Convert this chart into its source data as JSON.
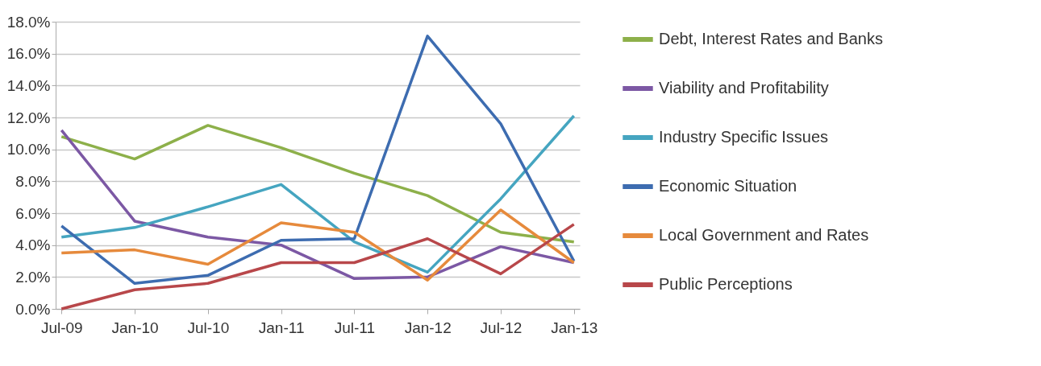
{
  "chart_data": {
    "type": "line",
    "categories": [
      "Jul-09",
      "Jan-10",
      "Jul-10",
      "Jan-11",
      "Jul-11",
      "Jan-12",
      "Jul-12",
      "Jan-13"
    ],
    "series": [
      {
        "name": "Debt, Interest Rates and Banks",
        "color": "#8db04a",
        "values": [
          10.8,
          9.4,
          11.5,
          10.1,
          8.5,
          7.1,
          4.8,
          4.2
        ]
      },
      {
        "name": "Viability and Profitability",
        "color": "#7c58a4",
        "values": [
          11.2,
          5.5,
          4.5,
          4.0,
          1.9,
          2.0,
          3.9,
          2.9
        ]
      },
      {
        "name": "Industry Specific Issues",
        "color": "#45a5c0",
        "values": [
          4.5,
          5.1,
          6.4,
          7.8,
          4.2,
          2.3,
          6.9,
          12.1
        ]
      },
      {
        "name": "Economic Situation",
        "color": "#3d6cb0",
        "values": [
          5.2,
          1.6,
          2.1,
          4.3,
          4.4,
          17.1,
          11.6,
          3.0
        ]
      },
      {
        "name": "Local Government and Rates",
        "color": "#e68a3c",
        "values": [
          3.5,
          3.7,
          2.8,
          5.4,
          4.8,
          1.8,
          6.2,
          2.9
        ]
      },
      {
        "name": "Public Perceptions",
        "color": "#b8474a",
        "values": [
          0.0,
          1.2,
          1.6,
          2.9,
          2.9,
          4.4,
          2.2,
          5.3
        ]
      }
    ],
    "ylim": [
      0,
      18
    ],
    "yticks": [
      {
        "value": 0,
        "label": "0.0%"
      },
      {
        "value": 2,
        "label": "2.0%"
      },
      {
        "value": 4,
        "label": "4.0%"
      },
      {
        "value": 6,
        "label": "6.0%"
      },
      {
        "value": 8,
        "label": "8.0%"
      },
      {
        "value": 10,
        "label": "10.0%"
      },
      {
        "value": 12,
        "label": "12.0%"
      },
      {
        "value": 14,
        "label": "14.0%"
      },
      {
        "value": 16,
        "label": "16.0%"
      },
      {
        "value": 18,
        "label": "18.0%"
      }
    ],
    "grid": "y",
    "legend": "right",
    "marker": "none",
    "line_style": "solid"
  }
}
